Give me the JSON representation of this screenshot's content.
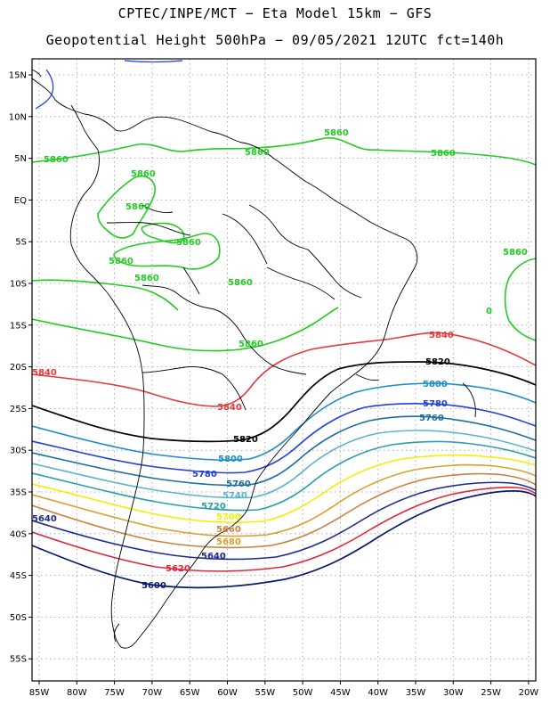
{
  "header": {
    "line1": "CPTEC/INPE/MCT −  Eta Model 15km − GFS",
    "line2": "Geopotential Height 500hPa − 09/05/2021 12UTC fct=140h"
  },
  "axes": {
    "lat_labels": [
      "15N",
      "10N",
      "5N",
      "EQ",
      "5S",
      "10S",
      "15S",
      "20S",
      "25S",
      "30S",
      "35S",
      "40S",
      "45S",
      "50S",
      "55S"
    ],
    "lon_labels": [
      "85W",
      "80W",
      "75W",
      "70W",
      "65W",
      "60W",
      "55W",
      "50W",
      "45W",
      "40W",
      "35W",
      "30W",
      "25W",
      "20W"
    ]
  },
  "colors": {
    "c5600": "#0a1a6e",
    "c5620": "#e0283c",
    "c5640": "#1e2a8c",
    "c5660": "#c8823c",
    "c5680": "#d8a02c",
    "c5700": "#f0f000",
    "c5720": "#2aa0a8",
    "c5740": "#5ab4d0",
    "c5760": "#1c6ea0",
    "c5780": "#2440d8",
    "c5800": "#1e8cc8",
    "c5820": "#000000",
    "c5840": "#e8383c",
    "c5860": "#22cc22",
    "coast": "#000000",
    "lakes": "#1a3ce0"
  },
  "contours": {
    "l5860": "5860",
    "l5840": "5840",
    "l5820": "5820",
    "l5800": "5800",
    "l5780": "5780",
    "l5760": "5760",
    "l5740": "5740",
    "l5720": "5720",
    "l5700": "5700",
    "l5680": "5680",
    "l5660": "5660",
    "l5640": "5640",
    "l5620": "5620",
    "l5600": "5600",
    "l0": "0"
  }
}
